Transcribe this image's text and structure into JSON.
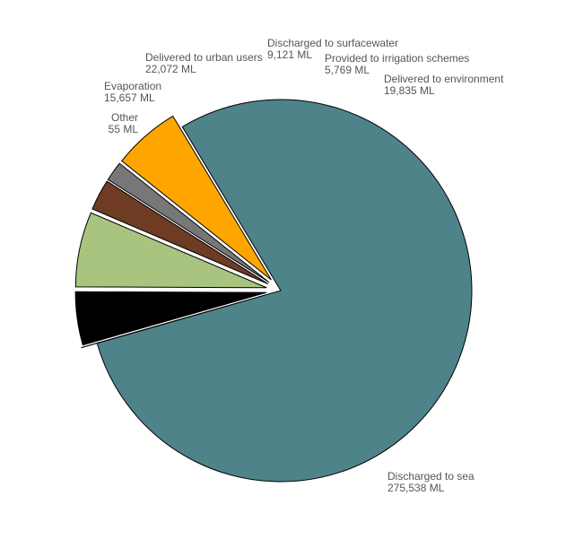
{
  "chart_data": {
    "type": "pie",
    "title": "",
    "slices": [
      {
        "name": "Discharged to sea",
        "value_label": "275,538 ML",
        "value": 275538,
        "color": "#4f838a"
      },
      {
        "name": "Other",
        "value_label": "55 ML",
        "value": 55,
        "color": "#ffffff"
      },
      {
        "name": "Evaporation",
        "value_label": "15,657 ML",
        "value": 15657,
        "color": "#000000"
      },
      {
        "name": "Delivered to urban users",
        "value_label": "22,072 ML",
        "value": 22072,
        "color": "#a9c47f"
      },
      {
        "name": "Discharged to surfacewater",
        "value_label": "9,121 ML",
        "value": 9121,
        "color": "#6e3b23"
      },
      {
        "name": "Provided to irrigation schemes",
        "value_label": "5,769 ML",
        "value": 5769,
        "color": "#777777"
      },
      {
        "name": "Delivered to environment",
        "value_label": "19,835 ML",
        "value": 19835,
        "color": "#ffa500"
      }
    ]
  }
}
